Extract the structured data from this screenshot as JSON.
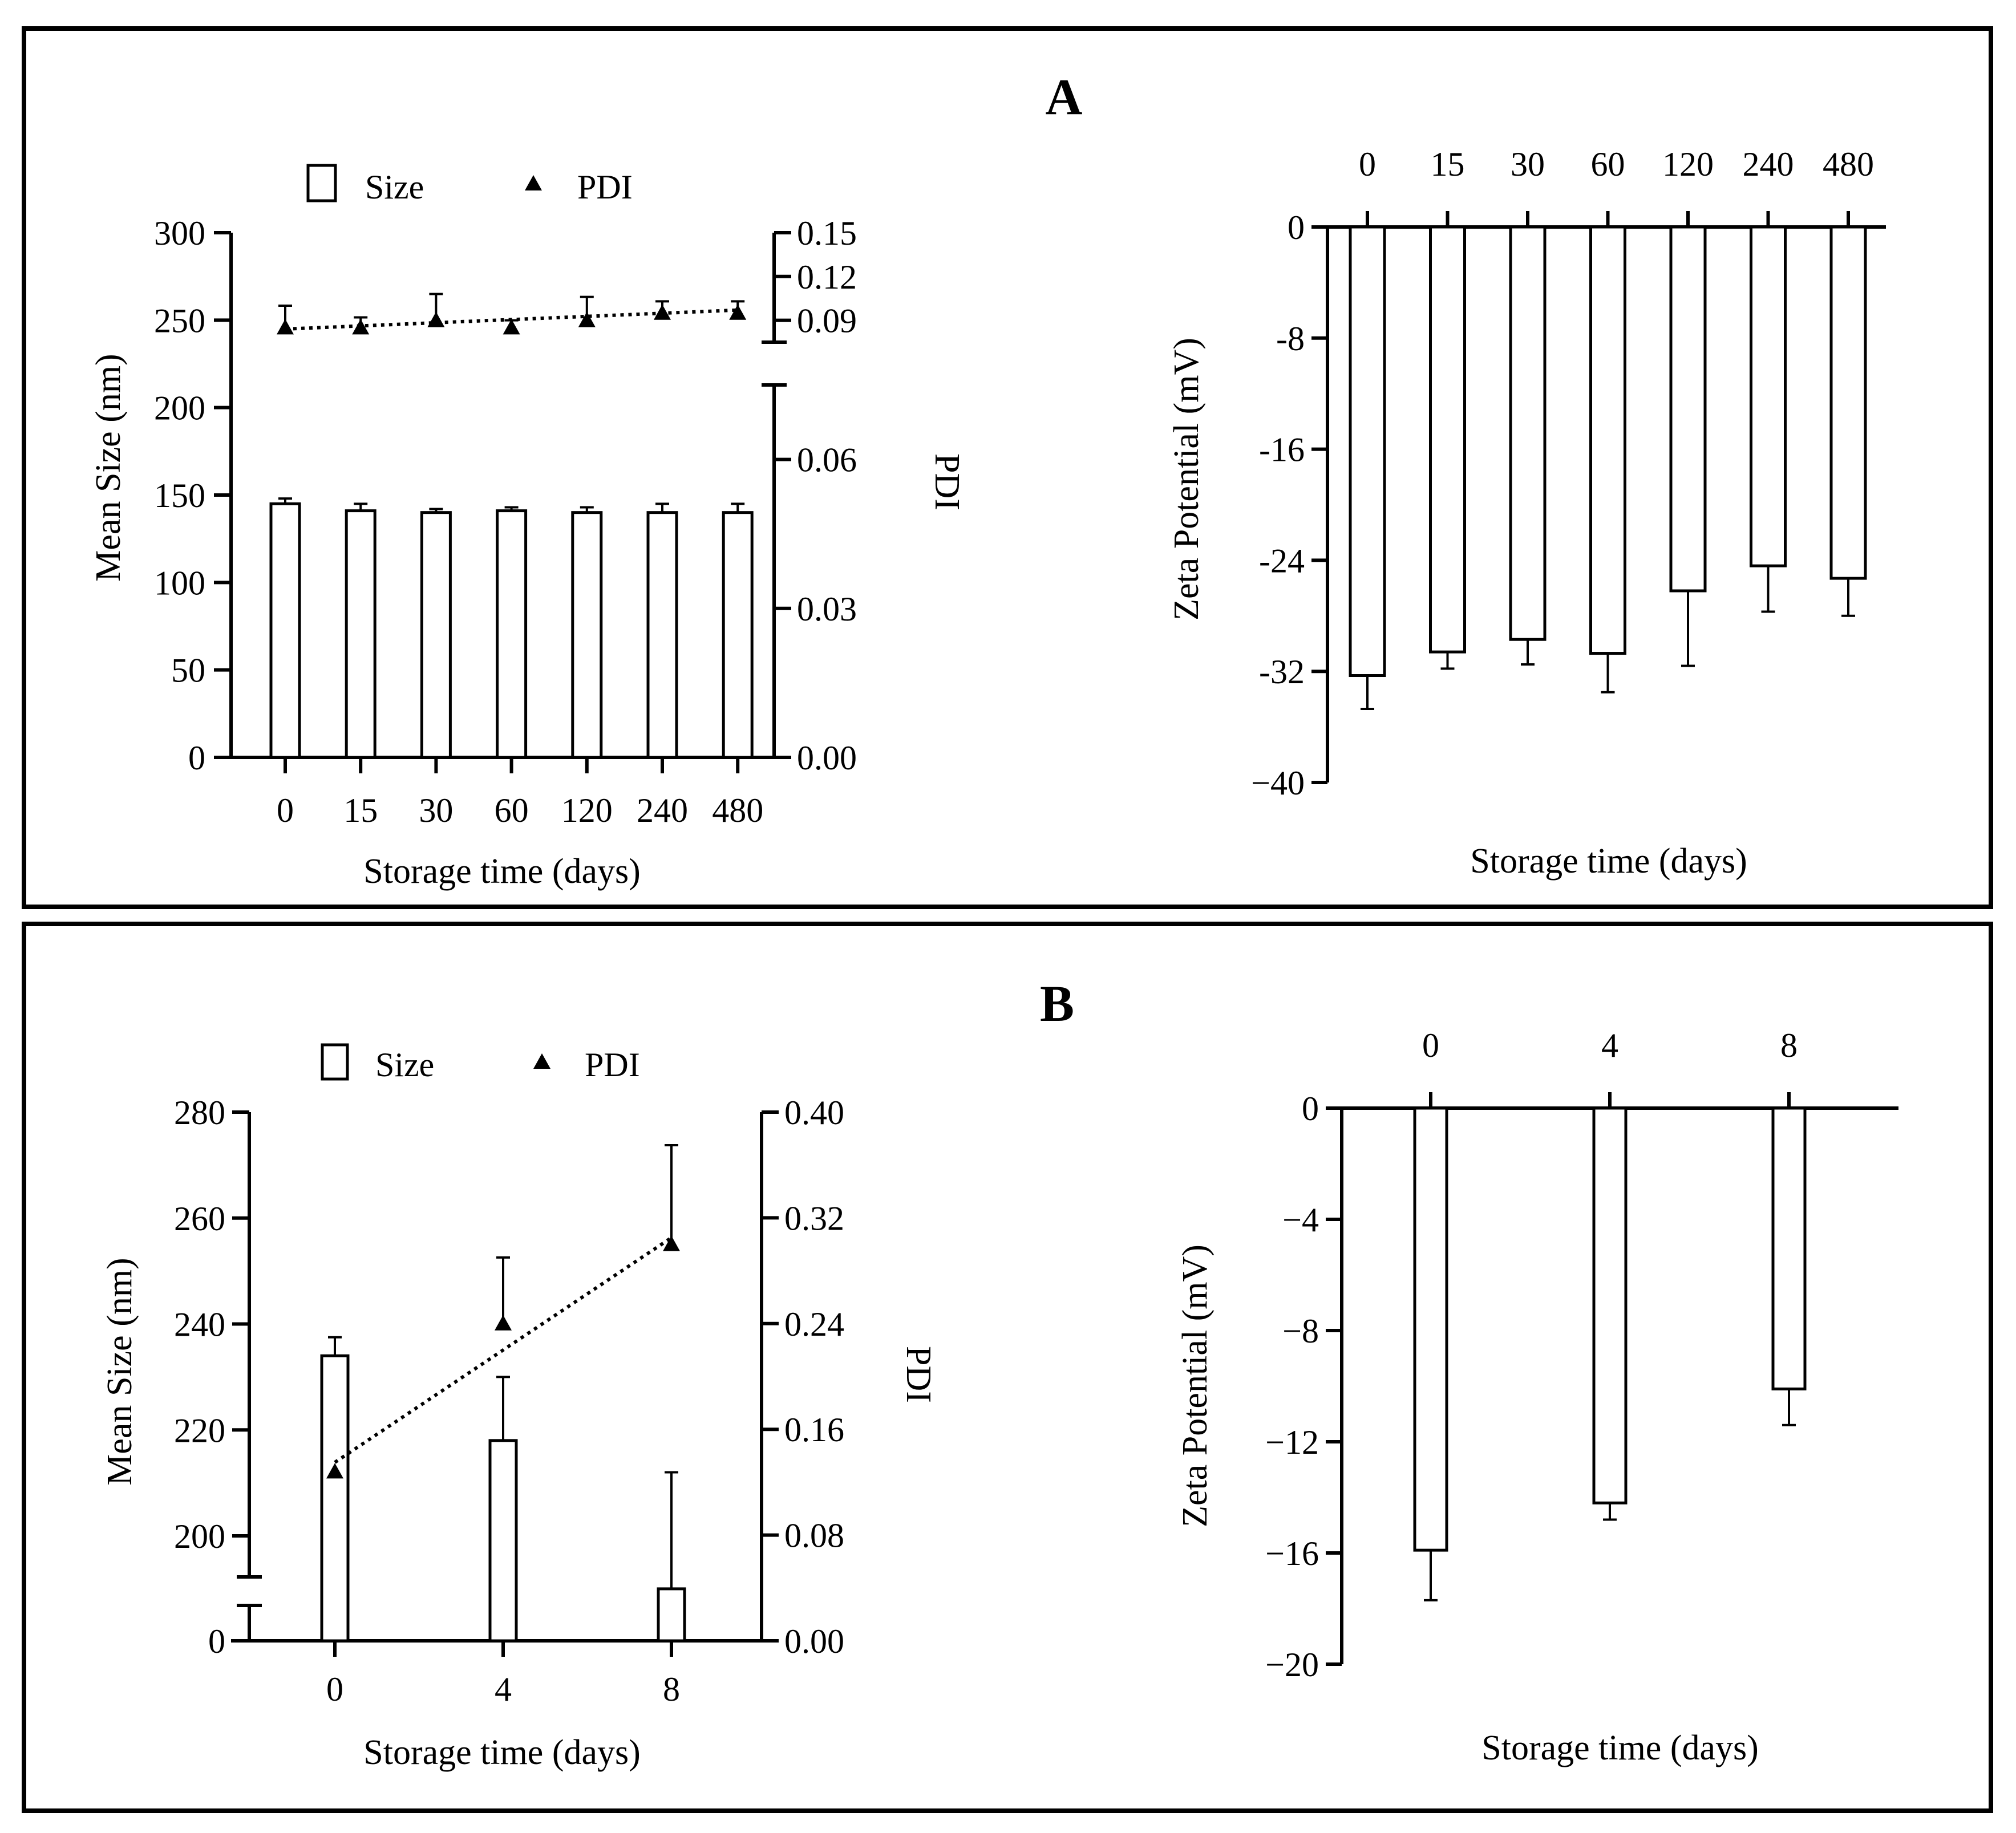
{
  "figure": {
    "colors": {
      "stroke": "#000000",
      "background": "#ffffff",
      "bar_fill": "#ffffff"
    }
  },
  "panels": [
    {
      "label": "A"
    },
    {
      "label": "B"
    }
  ],
  "chart_data": [
    {
      "id": "A-size-pdi",
      "type": "bar",
      "panel": "A",
      "categories": [
        "0",
        "15",
        "30",
        "60",
        "120",
        "240",
        "480"
      ],
      "series": [
        {
          "name": "Size",
          "kind": "bar",
          "axis": "left",
          "values": [
            145,
            141,
            140,
            141,
            140,
            140,
            140
          ],
          "errors": [
            3,
            4,
            2,
            2,
            3,
            5,
            5
          ]
        },
        {
          "name": "PDI",
          "kind": "scatter",
          "marker": "triangle",
          "axis": "right",
          "values": [
            0.085,
            0.085,
            0.09,
            0.085,
            0.09,
            0.095,
            0.095
          ],
          "errors": [
            0.015,
            0.007,
            0.018,
            0.005,
            0.016,
            0.008,
            0.008
          ],
          "trendline": {
            "style": "dotted",
            "from": 0.084,
            "to": 0.097
          }
        }
      ],
      "xlabel": "Storage time (days)",
      "ylabel": "Mean Size (nm)",
      "y2label": "PDI",
      "ylim": [
        0,
        300
      ],
      "yticks": [
        "0",
        "50",
        "100",
        "150",
        "200",
        "250",
        "300"
      ],
      "y2_lower": {
        "range": [
          0,
          0.075
        ],
        "ticks": [
          "0.00",
          "0.03",
          "0.06"
        ]
      },
      "y2_upper": {
        "range": [
          0.075,
          0.15
        ],
        "ticks": [
          "0.09",
          "0.12",
          "0.15"
        ]
      },
      "legend": [
        "Size",
        "PDI"
      ],
      "legend_position": "top"
    },
    {
      "id": "A-zeta",
      "type": "bar",
      "panel": "A",
      "categories": [
        "0",
        "15",
        "30",
        "60",
        "120",
        "240",
        "480"
      ],
      "values": [
        -32.3,
        -30.6,
        -29.7,
        -30.7,
        -26.2,
        -24.4,
        -25.3
      ],
      "errors": [
        2.4,
        1.2,
        1.8,
        2.8,
        5.4,
        3.3,
        2.7
      ],
      "xlabel": "Storage time (days)",
      "ylabel": "Zeta Potential (mV)",
      "ylim": [
        -40,
        0
      ],
      "yticks": [
        "0",
        "-8",
        "-16",
        "-24",
        "-32",
        "−40"
      ],
      "category_axis_position": "top"
    },
    {
      "id": "B-size-pdi",
      "type": "bar",
      "panel": "B",
      "categories": [
        "0",
        "4",
        "8"
      ],
      "series": [
        {
          "name": "Size",
          "kind": "bar",
          "axis": "left",
          "values": [
            234,
            218,
            190
          ],
          "errors": [
            3.5,
            12,
            22
          ]
        },
        {
          "name": "PDI",
          "kind": "scatter",
          "marker": "triangle",
          "axis": "right",
          "values": [
            0.128,
            0.24,
            0.3
          ],
          "errors": [
            0,
            0.05,
            0.075
          ],
          "trendline": {
            "style": "dotted",
            "from": 0.135,
            "to": 0.305
          }
        }
      ],
      "xlabel": "Storage time (days)",
      "ylabel": "Mean Size (nm)",
      "y2label": "PDI",
      "ylim": [
        180,
        280
      ],
      "axis_break": true,
      "yticks": [
        "0",
        "200",
        "220",
        "240",
        "260",
        "280"
      ],
      "y2lim": [
        0,
        0.4
      ],
      "y2ticks": [
        "0.00",
        "0.08",
        "0.16",
        "0.24",
        "0.32",
        "0.40"
      ],
      "legend": [
        "Size",
        "PDI"
      ],
      "legend_position": "top"
    },
    {
      "id": "B-zeta",
      "type": "bar",
      "panel": "B",
      "categories": [
        "0",
        "4",
        "8"
      ],
      "values": [
        -15.9,
        -14.2,
        -10.1
      ],
      "errors": [
        1.8,
        0.6,
        1.3
      ],
      "xlabel": "Storage time (days)",
      "ylabel": "Zeta Potential (mV)",
      "ylim": [
        -20,
        0
      ],
      "yticks": [
        "0",
        "−4",
        "−8",
        "−12",
        "−16",
        "−20"
      ],
      "category_axis_position": "top"
    }
  ]
}
